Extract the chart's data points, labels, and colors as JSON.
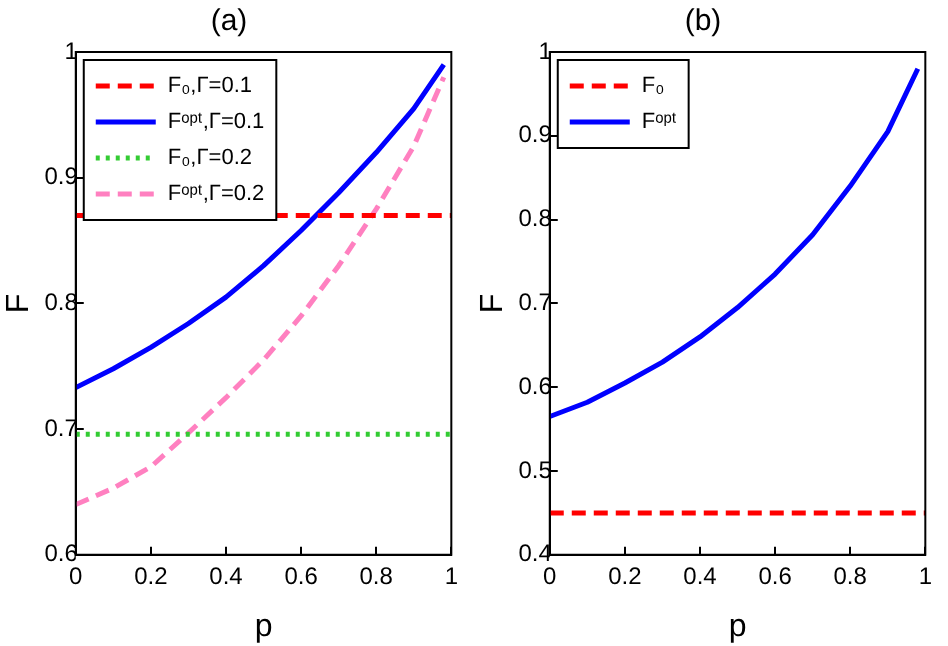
{
  "chart_data": [
    {
      "type": "line",
      "title": "(a)",
      "xlabel": "p",
      "ylabel": "F",
      "xlim": [
        0,
        1
      ],
      "xticks": [
        0,
        0.2,
        0.4,
        0.6,
        0.8,
        1
      ],
      "ylim": [
        0.6,
        1
      ],
      "yticks": [
        0.6,
        0.7,
        0.8,
        0.9,
        1
      ],
      "grid": false,
      "legend": "top left",
      "marker": "none",
      "series": [
        {
          "name": "F₀,Γ=0.1",
          "color": "#ff0000",
          "line_style": "dashed",
          "x": [
            0,
            1
          ],
          "values": [
            0.87,
            0.87
          ]
        },
        {
          "name": "Fᵒᵖᵗ,Γ=0.1",
          "color": "#0000ff",
          "line_style": "solid",
          "x": [
            0,
            0.1,
            0.2,
            0.3,
            0.4,
            0.5,
            0.6,
            0.7,
            0.8,
            0.9,
            0.98
          ],
          "values": [
            0.733,
            0.748,
            0.765,
            0.784,
            0.805,
            0.83,
            0.858,
            0.888,
            0.92,
            0.955,
            0.99
          ]
        },
        {
          "name": "F₀,Γ=0.2",
          "color": "#33cc33",
          "line_style": "dotted",
          "x": [
            0,
            1
          ],
          "values": [
            0.696,
            0.696
          ]
        },
        {
          "name": "Fᵒᵖᵗ,Γ=0.2",
          "color": "#ff80c0",
          "line_style": "dashed",
          "x": [
            0,
            0.1,
            0.2,
            0.3,
            0.4,
            0.5,
            0.6,
            0.7,
            0.8,
            0.9,
            0.98
          ],
          "values": [
            0.64,
            0.653,
            0.67,
            0.697,
            0.725,
            0.755,
            0.79,
            0.83,
            0.875,
            0.925,
            0.98
          ]
        }
      ]
    },
    {
      "type": "line",
      "title": "(b)",
      "xlabel": "p",
      "ylabel": "F",
      "xlim": [
        0,
        1
      ],
      "xticks": [
        0,
        0.2,
        0.4,
        0.6,
        0.8,
        1
      ],
      "ylim": [
        0.4,
        1
      ],
      "yticks": [
        0.4,
        0.5,
        0.6,
        0.7,
        0.8,
        0.9,
        1
      ],
      "grid": false,
      "legend": "top left",
      "marker": "none",
      "series": [
        {
          "name": "F₀",
          "color": "#ff0000",
          "line_style": "dashed",
          "x": [
            0,
            1
          ],
          "values": [
            0.45,
            0.45
          ]
        },
        {
          "name": "Fᵒᵖᵗ",
          "color": "#0000ff",
          "line_style": "solid",
          "x": [
            0,
            0.1,
            0.2,
            0.3,
            0.4,
            0.5,
            0.6,
            0.7,
            0.8,
            0.9,
            0.98
          ],
          "values": [
            0.565,
            0.582,
            0.605,
            0.63,
            0.66,
            0.695,
            0.735,
            0.782,
            0.84,
            0.905,
            0.98
          ]
        }
      ]
    }
  ]
}
